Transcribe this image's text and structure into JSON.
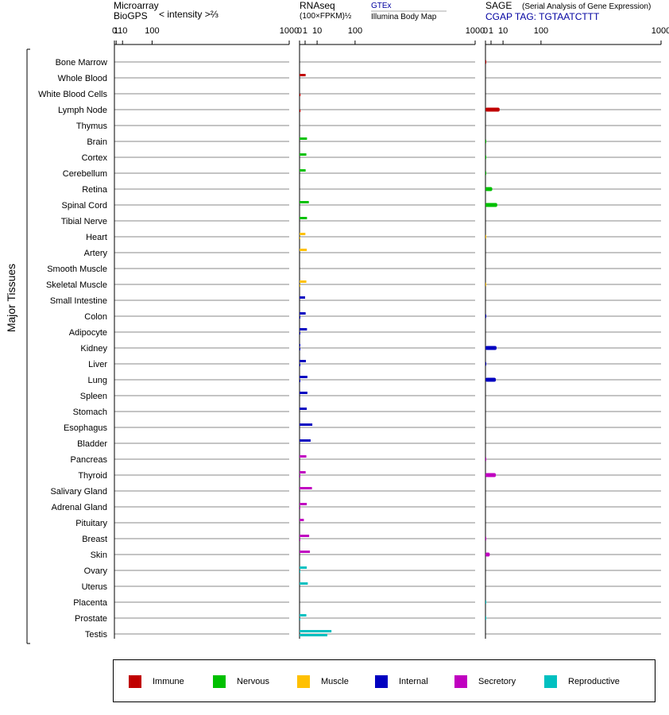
{
  "headers": {
    "microarray": {
      "line1": "Microarray",
      "line2": "BioGPS",
      "intensity": "< intensity >⅔"
    },
    "rnaseq": {
      "line1": "RNAseq",
      "line2": "(100×FPKM)½",
      "gtex": "GTEx",
      "illumina": "Illumina Body Map"
    },
    "sage": {
      "line1": "SAGE",
      "subtitle": "(Serial Analysis of Gene Expression)",
      "tag": "CGAP TAG: TGTAATCTTT"
    }
  },
  "y_axis_label": "Major Tissues",
  "colors": {
    "Immune": "#c00000",
    "Nervous": "#00c000",
    "Muscle": "#ffc000",
    "Internal": "#0000c0",
    "Secretory": "#c000c0",
    "Reproductive": "#00c0c0"
  },
  "legend": [
    "Immune",
    "Nervous",
    "Muscle",
    "Internal",
    "Secretory",
    "Reproductive"
  ],
  "chart_data": [
    {
      "type": "bar",
      "panel": "Microarray",
      "x_scale": "power 2/3",
      "ticks": [
        "0",
        "1",
        "10",
        "100",
        "1000"
      ],
      "xlim": [
        0,
        1000
      ],
      "tissues": [
        "Bone Marrow",
        "Whole Blood",
        "White Blood Cells",
        "Lymph Node",
        "Thymus",
        "Brain",
        "Cortex",
        "Cerebellum",
        "Retina",
        "Spinal Cord",
        "Tibial Nerve",
        "Heart",
        "Artery",
        "Smooth Muscle",
        "Skeletal Muscle",
        "Small Intestine",
        "Colon",
        "Adipocyte",
        "Kidney",
        "Liver",
        "Lung",
        "Spleen",
        "Stomach",
        "Esophagus",
        "Bladder",
        "Pancreas",
        "Thyroid",
        "Salivary Gland",
        "Adrenal Gland",
        "Pituitary",
        "Breast",
        "Skin",
        "Ovary",
        "Uterus",
        "Placenta",
        "Prostate",
        "Testis"
      ],
      "values": []
    },
    {
      "type": "bar",
      "panel": "RNAseq",
      "x_scale": "sqrt",
      "ticks": [
        "0",
        "1",
        "10",
        "100",
        "1000"
      ],
      "xlim": [
        0,
        1000
      ],
      "series": [
        {
          "name": "GTEx",
          "values": {
            "Whole Blood": 1.2,
            "Brain": 1.8,
            "Cortex": 1.5,
            "Cerebellum": 1.2,
            "Spinal Cord": 2.8,
            "Tibial Nerve": 1.8,
            "Heart": 1.1,
            "Artery": 1.7,
            "Skeletal Muscle": 1.5,
            "Small Intestine": 1.0,
            "Colon": 1.2,
            "Adipocyte": 1.8,
            "Kidney": 0.02,
            "Liver": 1.3,
            "Lung": 2.0,
            "Spleen": 2.0,
            "Stomach": 1.7,
            "Esophagus": 5.3,
            "Bladder": 4.0,
            "Pancreas": 1.5,
            "Thyroid": 1.2,
            "Salivary Gland": 5.0,
            "Adrenal Gland": 1.7,
            "Pituitary": 0.6,
            "Breast": 3.0,
            "Skin": 3.5,
            "Ovary": 1.7,
            "Uterus": 2.2,
            "Prostate": 1.5,
            "Testis": 33
          }
        },
        {
          "name": "Illumina Body Map",
          "values": {
            "White Blood Cells": 0.03,
            "Lymph Node": 0.03,
            "Heart": 0.02,
            "Skeletal Muscle": 0.02,
            "Colon": 0.02,
            "Adipocyte": 0.02,
            "Kidney": 0.02,
            "Liver": 0.02,
            "Lung": 0.02,
            "Thyroid": 0.02,
            "Adrenal Gland": 0.02,
            "Breast": 0.02,
            "Ovary": 0.02,
            "Prostate": 0.02,
            "Testis": 25
          }
        }
      ]
    },
    {
      "type": "bar",
      "panel": "SAGE",
      "x_scale": "sqrt",
      "ticks": [
        "0",
        "1",
        "10",
        "100",
        "1000"
      ],
      "xlim": [
        0,
        1000
      ],
      "values": {
        "Bone Marrow": 0.02,
        "Lymph Node": 6.5,
        "Brain": 0.01,
        "Cortex": 0.01,
        "Cerebellum": 0.01,
        "Retina": 1.5,
        "Spinal Cord": 4.5,
        "Heart": 0.005,
        "Skeletal Muscle": 0.005,
        "Colon": 0.02,
        "Kidney": 4.0,
        "Liver": 0.02,
        "Lung": 3.5,
        "Pancreas": 0.02,
        "Thyroid": 3.5,
        "Breast": 0.02,
        "Skin": 0.6,
        "Placenta": 0.01,
        "Prostate": 0.01
      }
    }
  ]
}
